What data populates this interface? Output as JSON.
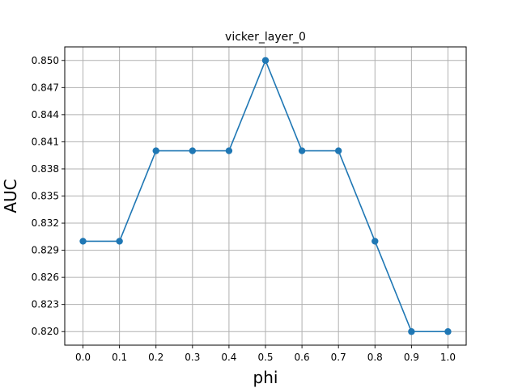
{
  "chart_data": {
    "type": "line",
    "title": "vicker_layer_0",
    "xlabel": "phi",
    "ylabel": "AUC",
    "x": [
      0.0,
      0.1,
      0.2,
      0.3,
      0.4,
      0.5,
      0.6,
      0.7,
      0.8,
      0.9,
      1.0
    ],
    "series": [
      {
        "values": [
          0.83,
          0.83,
          0.84,
          0.84,
          0.84,
          0.85,
          0.84,
          0.84,
          0.83,
          0.82,
          0.82
        ],
        "color": "#1f77b4",
        "marker": "circle"
      }
    ],
    "xticks": [
      "0.0",
      "0.1",
      "0.2",
      "0.3",
      "0.4",
      "0.5",
      "0.6",
      "0.7",
      "0.8",
      "0.9",
      "1.0"
    ],
    "yticks": [
      0.82,
      0.823,
      0.826,
      0.829,
      0.832,
      0.835,
      0.838,
      0.841,
      0.844,
      0.847,
      0.85
    ],
    "ytick_labels": [
      "0.820",
      "0.823",
      "0.826",
      "0.829",
      "0.832",
      "0.835",
      "0.838",
      "0.841",
      "0.844",
      "0.847",
      "0.850"
    ],
    "xlim": [
      -0.05,
      1.05
    ],
    "ylim": [
      0.8185,
      0.8515
    ],
    "grid": true,
    "legend": "none"
  }
}
